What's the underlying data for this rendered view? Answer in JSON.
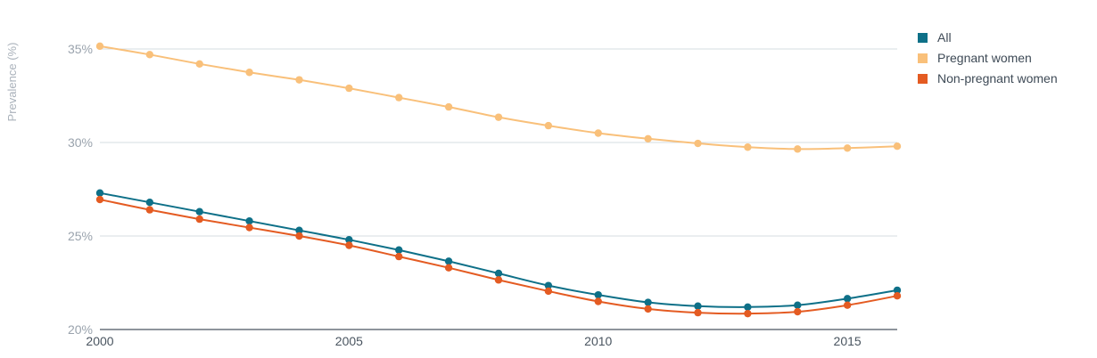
{
  "chart_data": {
    "type": "line",
    "title": "",
    "xlabel": "",
    "ylabel": "Prevalence (%)",
    "x": [
      2000,
      2001,
      2002,
      2003,
      2004,
      2005,
      2006,
      2007,
      2008,
      2009,
      2010,
      2011,
      2012,
      2013,
      2014,
      2015,
      2016
    ],
    "xlim": [
      2000,
      2016
    ],
    "ylim": [
      20,
      36
    ],
    "x_ticks": [
      2000,
      2005,
      2010,
      2015
    ],
    "x_tick_labels": [
      "2000",
      "2005",
      "2010",
      "2015"
    ],
    "y_ticks": [
      20,
      25,
      30,
      35
    ],
    "y_tick_labels": [
      "20%",
      "25%",
      "30%",
      "35%"
    ],
    "grid": "horizontal",
    "legend_position": "top-right",
    "series": [
      {
        "name": "All",
        "color": "#0e7088",
        "values": [
          27.3,
          26.8,
          26.3,
          25.8,
          25.3,
          24.8,
          24.25,
          23.65,
          23.0,
          22.35,
          21.85,
          21.45,
          21.25,
          21.2,
          21.3,
          21.65,
          22.1
        ]
      },
      {
        "name": "Pregnant women",
        "color": "#f9c07a",
        "values": [
          35.15,
          34.7,
          34.2,
          33.75,
          33.35,
          32.9,
          32.4,
          31.9,
          31.35,
          30.9,
          30.5,
          30.2,
          29.95,
          29.75,
          29.65,
          29.7,
          29.8
        ]
      },
      {
        "name": "Non-pregnant women",
        "color": "#e45b22",
        "values": [
          26.95,
          26.4,
          25.9,
          25.45,
          25.0,
          24.5,
          23.9,
          23.3,
          22.65,
          22.05,
          21.5,
          21.1,
          20.9,
          20.85,
          20.95,
          21.3,
          21.8
        ]
      }
    ]
  }
}
